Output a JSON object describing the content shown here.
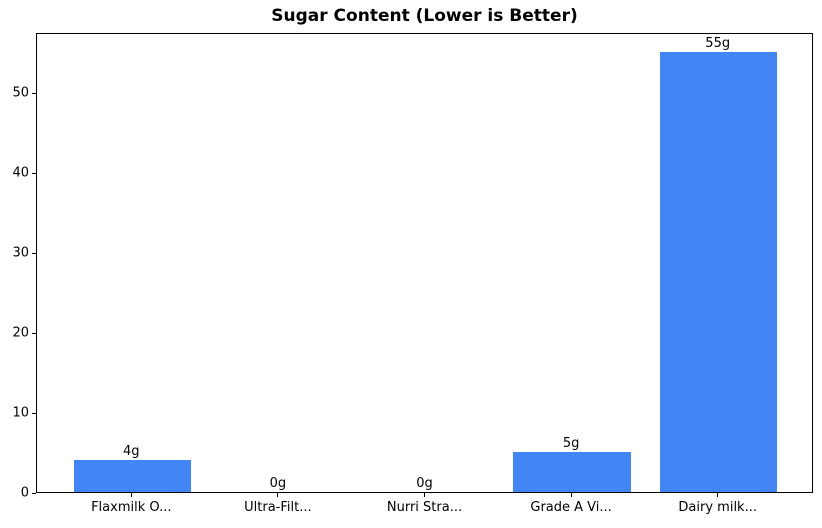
{
  "chart_data": {
    "type": "bar",
    "title": "Sugar Content (Lower is Better)",
    "categories": [
      "Flaxmilk O...",
      "Ultra-Filt...",
      "Nurri Stra...",
      "Grade A Vi...",
      "Dairy milk..."
    ],
    "values": [
      4,
      0,
      0,
      5,
      55
    ],
    "bar_labels": [
      "4g",
      "0g",
      "0g",
      "5g",
      "55g"
    ],
    "yticks": [
      0,
      10,
      20,
      30,
      40,
      50
    ],
    "ylim": [
      0,
      57.5
    ],
    "xlabel": "",
    "ylabel": "",
    "grid": false,
    "legend_position": "none",
    "bar_color": "#4285f4",
    "background_color": "#ffffff",
    "axis_color": "#000000"
  }
}
